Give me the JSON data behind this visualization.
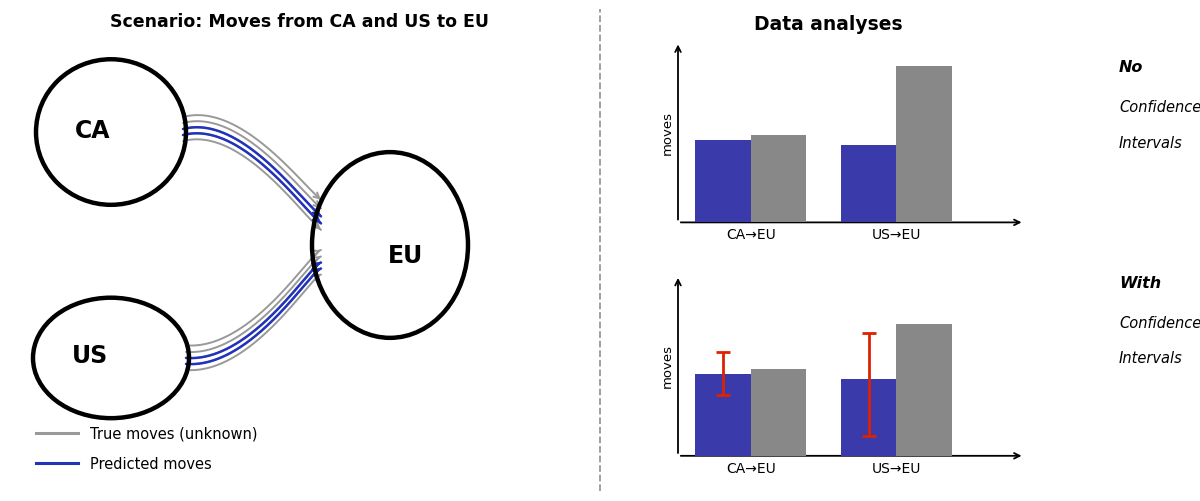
{
  "title_left": "Scenario: Moves from CA and US to EU",
  "title_right": "Data analyses",
  "legend_gray": "True moves (unknown)",
  "legend_blue": "Predicted moves",
  "bar_labels": [
    "CA→EU",
    "US→EU"
  ],
  "bar_blue_no_ci": [
    0.5,
    0.47
  ],
  "bar_gray_no_ci": [
    0.53,
    0.95
  ],
  "bar_blue_with_ci": [
    0.5,
    0.47
  ],
  "bar_gray_with_ci": [
    0.53,
    0.8
  ],
  "ci_lower_ca": 0.13,
  "ci_upper_ca": 0.13,
  "ci_lower_us": 0.35,
  "ci_upper_us": 0.28,
  "ci_blue_color": "#dd2200",
  "bar_blue_color": "#3a3aaa",
  "bar_gray_color": "#888888",
  "background_color": "#ffffff"
}
